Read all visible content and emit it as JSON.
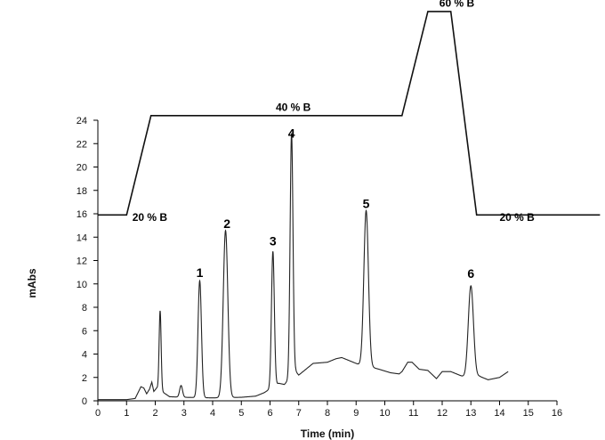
{
  "chart_data": {
    "type": "line",
    "xlabel": "Time (min)",
    "ylabel": "mAbs",
    "xlim": [
      0,
      16
    ],
    "ylim": [
      0,
      24
    ],
    "x_ticks": [
      0,
      1,
      2,
      3,
      4,
      5,
      6,
      7,
      8,
      9,
      10,
      11,
      12,
      13,
      14,
      15,
      16
    ],
    "y_ticks": [
      0,
      2,
      4,
      6,
      8,
      10,
      12,
      14,
      16,
      18,
      20,
      22,
      24
    ],
    "grid": false,
    "chromatogram": {
      "baseline": [
        [
          0.0,
          0.1
        ],
        [
          1.0,
          0.1
        ],
        [
          1.3,
          0.2
        ],
        [
          1.5,
          1.2
        ],
        [
          1.6,
          1.1
        ],
        [
          1.7,
          0.6
        ],
        [
          1.8,
          1.0
        ],
        [
          1.88,
          1.6
        ],
        [
          1.95,
          0.8
        ],
        [
          2.05,
          1.1
        ],
        [
          2.5,
          0.35
        ],
        [
          3.0,
          0.3
        ],
        [
          4.0,
          0.25
        ],
        [
          5.0,
          0.3
        ],
        [
          5.5,
          0.4
        ],
        [
          5.8,
          0.7
        ],
        [
          6.3,
          1.5
        ],
        [
          6.5,
          1.4
        ],
        [
          6.9,
          2.5
        ],
        [
          7.0,
          2.2
        ],
        [
          7.2,
          2.6
        ],
        [
          7.5,
          3.2
        ],
        [
          8.0,
          3.3
        ],
        [
          8.3,
          3.6
        ],
        [
          8.5,
          3.7
        ],
        [
          8.8,
          3.4
        ],
        [
          9.1,
          3.1
        ],
        [
          9.5,
          2.9
        ],
        [
          9.8,
          2.7
        ],
        [
          10.2,
          2.4
        ],
        [
          10.5,
          2.3
        ],
        [
          10.6,
          2.5
        ],
        [
          10.8,
          3.3
        ],
        [
          10.95,
          3.3
        ],
        [
          11.2,
          2.7
        ],
        [
          11.5,
          2.6
        ],
        [
          11.8,
          1.9
        ],
        [
          12.0,
          2.5
        ],
        [
          12.3,
          2.5
        ],
        [
          12.6,
          2.2
        ],
        [
          12.8,
          2.0
        ],
        [
          13.3,
          2.1
        ],
        [
          13.6,
          1.8
        ],
        [
          14.0,
          2.0
        ],
        [
          14.3,
          2.5
        ]
      ],
      "peaks": [
        {
          "t": 2.17,
          "h": 6.8,
          "w": 0.035
        },
        {
          "t": 2.9,
          "h": 1.0,
          "w": 0.05
        },
        {
          "t": 3.55,
          "h": 10.0,
          "w": 0.06
        },
        {
          "t": 4.45,
          "h": 14.3,
          "w": 0.08
        },
        {
          "t": 6.1,
          "h": 11.6,
          "w": 0.05
        },
        {
          "t": 6.75,
          "h": 20.8,
          "w": 0.05
        },
        {
          "t": 9.35,
          "h": 13.3,
          "w": 0.08
        },
        {
          "t": 13.0,
          "h": 7.8,
          "w": 0.09
        }
      ]
    },
    "peak_labels": [
      {
        "text": "1",
        "x": 3.55,
        "y": 10.6
      },
      {
        "text": "2",
        "x": 4.5,
        "y": 14.8
      },
      {
        "text": "3",
        "x": 6.1,
        "y": 13.3
      },
      {
        "text": "4",
        "x": 6.75,
        "y": 22.5
      },
      {
        "text": "5",
        "x": 9.35,
        "y": 16.5
      },
      {
        "text": "6",
        "x": 13.0,
        "y": 10.5
      }
    ],
    "gradient": {
      "points": [
        [
          0.0,
          15.9
        ],
        [
          1.0,
          15.9
        ],
        [
          1.85,
          24.4
        ],
        [
          10.6,
          24.4
        ],
        [
          11.5,
          33.3
        ],
        [
          12.3,
          33.3
        ],
        [
          13.2,
          15.9
        ],
        [
          17.5,
          15.9
        ]
      ],
      "labels": [
        {
          "text": "20 % B",
          "x": 1.2,
          "y": 15.4
        },
        {
          "text": "40 % B",
          "x": 6.2,
          "y": 24.8
        },
        {
          "text": "60 % B",
          "x": 11.9,
          "y": 33.7
        },
        {
          "text": "20 % B",
          "x": 14.0,
          "y": 15.4
        }
      ]
    }
  }
}
